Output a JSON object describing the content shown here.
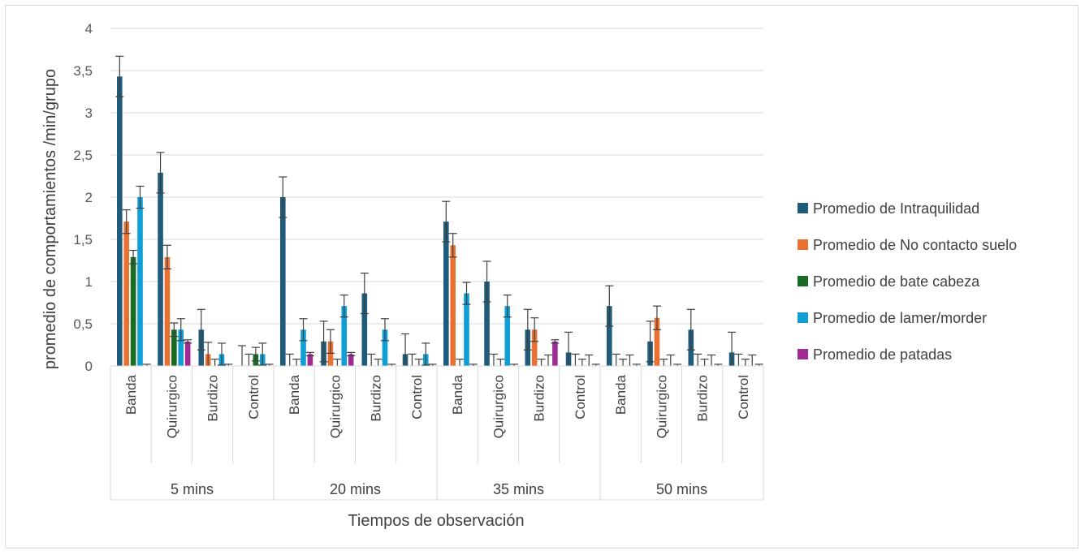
{
  "chart_data": {
    "type": "bar",
    "ylabel": "promedio de comportamientos /min/grupo",
    "xlabel": "Tiempos de observación",
    "ylim": [
      0,
      4
    ],
    "yticks": [
      "0",
      "0,5",
      "1",
      "1,5",
      "2",
      "2,5",
      "3",
      "3,5",
      "4"
    ],
    "grid": "horizontal",
    "legend_position": "right",
    "groups": [
      {
        "label": "5 mins",
        "categories": [
          "Banda",
          "Quirurgico",
          "Burdizo",
          "Control"
        ]
      },
      {
        "label": "20 mins",
        "categories": [
          "Banda",
          "Quirurgico",
          "Burdizo",
          "Control"
        ]
      },
      {
        "label": "35 mins",
        "categories": [
          "Banda",
          "Quirurgico",
          "Burdizo",
          "Control"
        ]
      },
      {
        "label": "50 mins",
        "categories": [
          "Banda",
          "Quirurgico",
          "Burdizo",
          "Control"
        ]
      }
    ],
    "series": [
      {
        "name": "Promedio de Intraquilidad",
        "color": "#1f5b7a",
        "values": [
          3.43,
          2.29,
          0.43,
          0.0,
          2.0,
          0.29,
          0.86,
          0.14,
          1.71,
          1.0,
          0.43,
          0.16,
          0.71,
          0.29,
          0.43,
          0.16
        ],
        "errors": [
          0.24,
          0.24,
          0.24,
          0.24,
          0.24,
          0.24,
          0.24,
          0.24,
          0.24,
          0.24,
          0.24,
          0.24,
          0.24,
          0.24,
          0.24,
          0.24
        ]
      },
      {
        "name": "Promedio de No contacto suelo",
        "color": "#e97132",
        "values": [
          1.71,
          1.29,
          0.14,
          0.0,
          0.0,
          0.29,
          0.0,
          0.0,
          1.43,
          0.0,
          0.43,
          0.0,
          0.0,
          0.57,
          0.0,
          0.0
        ],
        "errors": [
          0.14,
          0.14,
          0.14,
          0.14,
          0.14,
          0.14,
          0.14,
          0.14,
          0.14,
          0.14,
          0.14,
          0.14,
          0.14,
          0.14,
          0.14,
          0.14
        ]
      },
      {
        "name": "Promedio de bate cabeza",
        "color": "#196b24",
        "values": [
          1.29,
          0.43,
          0.0,
          0.14,
          0.0,
          0.0,
          0.0,
          0.0,
          0.0,
          0.0,
          0.0,
          0.0,
          0.0,
          0.0,
          0.0,
          0.0
        ],
        "errors": [
          0.08,
          0.08,
          0.08,
          0.08,
          0.08,
          0.08,
          0.08,
          0.08,
          0.08,
          0.08,
          0.08,
          0.08,
          0.08,
          0.08,
          0.08,
          0.08
        ]
      },
      {
        "name": "Promedio de lamer/morder",
        "color": "#0f9ed5",
        "values": [
          2.0,
          0.43,
          0.14,
          0.14,
          0.43,
          0.71,
          0.43,
          0.14,
          0.86,
          0.71,
          0.0,
          0.0,
          0.0,
          0.0,
          0.0,
          0.0
        ],
        "errors": [
          0.13,
          0.13,
          0.13,
          0.13,
          0.13,
          0.13,
          0.13,
          0.13,
          0.13,
          0.13,
          0.13,
          0.13,
          0.13,
          0.13,
          0.13,
          0.13
        ]
      },
      {
        "name": "Promedio de patadas",
        "color": "#a02b93",
        "values": [
          0.0,
          0.29,
          0.0,
          0.0,
          0.14,
          0.14,
          0.0,
          0.0,
          0.0,
          0.0,
          0.29,
          0.0,
          0.0,
          0.0,
          0.0,
          0.0
        ],
        "errors": [
          0.02,
          0.02,
          0.02,
          0.02,
          0.02,
          0.02,
          0.02,
          0.02,
          0.02,
          0.02,
          0.02,
          0.02,
          0.02,
          0.02,
          0.02,
          0.02
        ]
      }
    ]
  }
}
